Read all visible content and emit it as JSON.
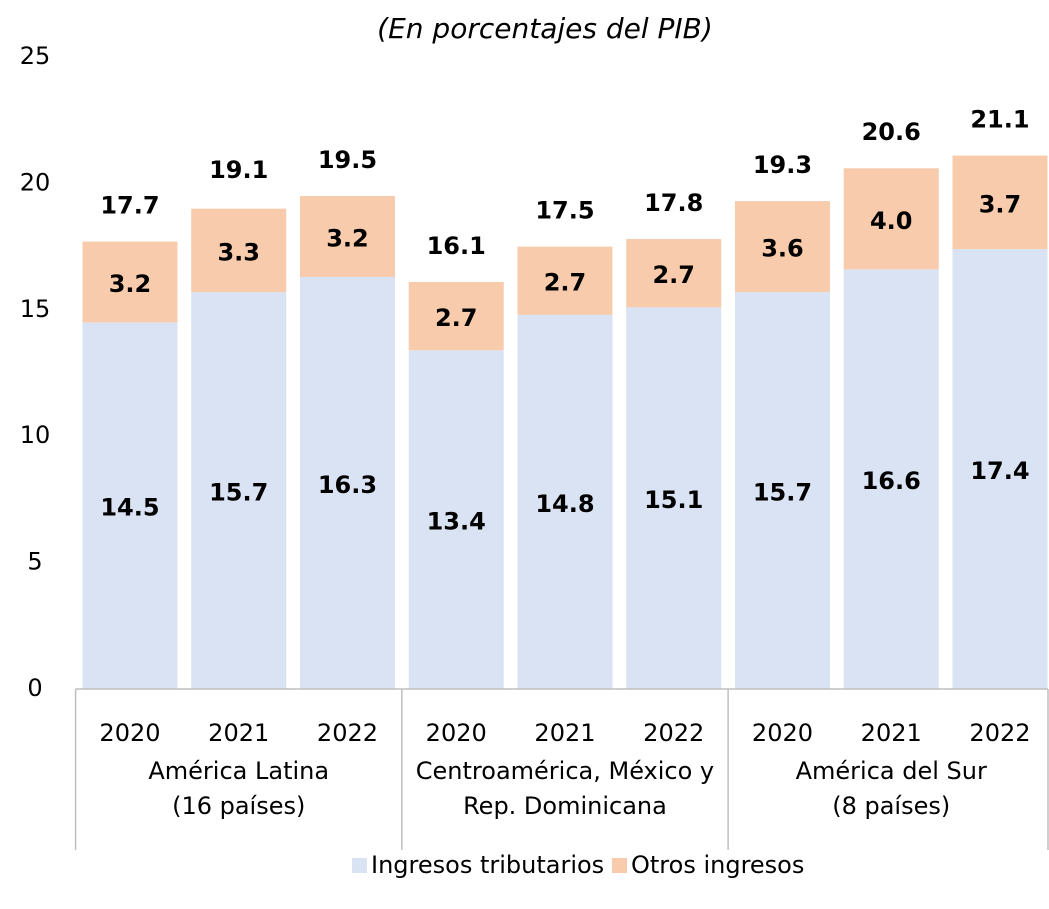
{
  "chart_data": {
    "type": "stacked-bar",
    "subtitle": "(En porcentajes del PIB)",
    "categories": [
      "2020",
      "2021",
      "2022",
      "2020",
      "2021",
      "2022",
      "2020",
      "2021",
      "2022"
    ],
    "groups": [
      [
        "América Latina",
        "(16 países)"
      ],
      [
        "Centroamérica, México y",
        "Rep. Dominicana"
      ],
      [
        "América del Sur",
        "(8 países)"
      ]
    ],
    "series": [
      {
        "name": "Ingresos tributarios",
        "color": "#dae3f3",
        "values": [
          14.5,
          15.7,
          16.3,
          13.4,
          14.8,
          15.1,
          15.7,
          16.6,
          17.4
        ]
      },
      {
        "name": "Otros ingresos",
        "color": "#f8cbad",
        "values": [
          3.2,
          3.3,
          3.2,
          2.7,
          2.7,
          2.7,
          3.6,
          4.0,
          3.7
        ],
        "value_labels": [
          "3.2",
          "3.3",
          "3.2",
          "2.7",
          "2.7",
          "2.7",
          "3.6",
          "4.0",
          "3.7"
        ]
      }
    ],
    "totals": [
      17.7,
      19.1,
      19.5,
      16.1,
      17.5,
      17.8,
      19.3,
      20.6,
      21.1
    ],
    "ylim": [
      0,
      25
    ],
    "yticks": [
      0,
      5,
      10,
      15,
      20,
      25
    ],
    "grid": false,
    "legend": "bottom"
  }
}
